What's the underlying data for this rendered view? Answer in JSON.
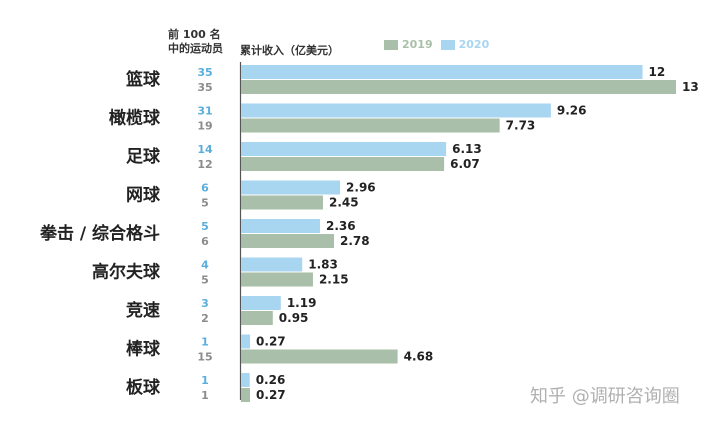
{
  "header": {
    "count_label_line1": "前 100 名",
    "count_label_line2": "中的运动员",
    "earnings_label": "累计收入（亿美元）"
  },
  "legend": [
    {
      "name": "2019",
      "color": "#a9bfa9"
    },
    {
      "name": "2020",
      "color": "#a8d5f0"
    }
  ],
  "colors": {
    "bar_2019": "#a9bfa9",
    "bar_2020": "#a8d5f0",
    "count_2019": "#8c8c8c",
    "count_2020": "#5aaedc"
  },
  "chart_data": {
    "type": "bar",
    "orientation": "horizontal",
    "categories": [
      "篮球",
      "橄榄球",
      "足球",
      "网球",
      "拳击 / 综合格斗",
      "高尔夫球",
      "竞速",
      "棒球",
      "板球"
    ],
    "series": [
      {
        "name": "2020",
        "values": [
          12,
          9.26,
          6.13,
          2.96,
          2.36,
          1.83,
          1.19,
          0.27,
          0.26
        ],
        "athletes": [
          35,
          31,
          14,
          6,
          5,
          4,
          3,
          1,
          1
        ]
      },
      {
        "name": "2019",
        "values": [
          13,
          7.73,
          6.07,
          2.45,
          2.78,
          2.15,
          0.95,
          4.68,
          0.27
        ],
        "athletes": [
          35,
          19,
          12,
          5,
          6,
          5,
          2,
          15,
          1
        ]
      }
    ],
    "value_labels_2020": [
      "12",
      "9.26",
      "6.13",
      "2.96",
      "2.36",
      "1.83",
      "1.19",
      "0.27",
      "0.26"
    ],
    "value_labels_2019": [
      "13",
      "7.73",
      "6.07",
      "2.45",
      "2.78",
      "2.15",
      "0.95",
      "4.68",
      "0.27"
    ],
    "xlim": [
      0,
      13
    ],
    "grid": false
  },
  "watermark": "知乎 @调研咨询圈"
}
